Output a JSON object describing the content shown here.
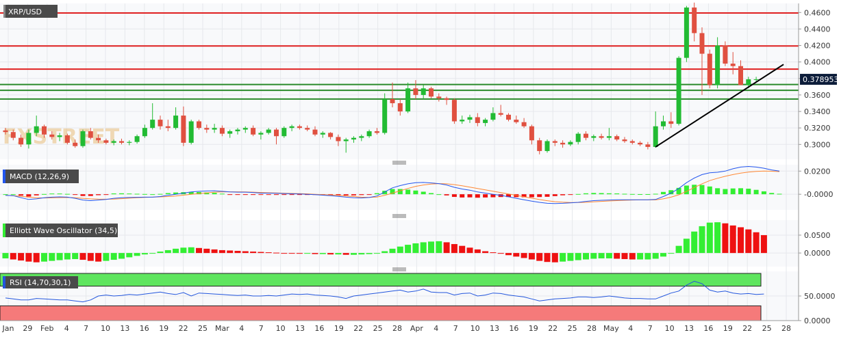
{
  "symbol": "XRP/USD",
  "watermark": "FXSTREET",
  "last_price": "0.378953",
  "colors": {
    "up": "#22bb33",
    "down": "#e05040",
    "resistance": "#e02020",
    "support": "#2a8a2a",
    "trendline": "#000000",
    "macd": "#2255ee",
    "signal": "#ff8833",
    "hist_up": "#33ee33",
    "hist_down": "#ee1111",
    "rsi_line": "#2255dd",
    "rsi_overbought": "#5ee55e",
    "rsi_oversold": "#f57a7a",
    "price_tag": "#0d1d3a",
    "label_bg": "#4a4a4a"
  },
  "chart_data": [
    {
      "type": "candlestick",
      "name": "XRP/USD",
      "y_ticks": [
        "0.3000",
        "0.3200",
        "0.3400",
        "0.3600",
        "0.3800",
        "0.4000",
        "0.4200",
        "0.4400",
        "0.4600"
      ],
      "ylim": [
        0.282,
        0.471
      ],
      "x_tick_labels": [
        "Jan",
        "29",
        "Feb",
        "4",
        "7",
        "10",
        "13",
        "16",
        "19",
        "22",
        "25",
        "Mar",
        "4",
        "7",
        "10",
        "13",
        "16",
        "19",
        "22",
        "25",
        "28",
        "Apr",
        "4",
        "7",
        "10",
        "13",
        "16",
        "19",
        "22",
        "25",
        "28",
        "May",
        "4",
        "7",
        "10",
        "13",
        "16",
        "19",
        "22",
        "25",
        "28"
      ],
      "ohlc": [
        [
          0.317,
          0.32,
          0.312,
          0.315
        ],
        [
          0.315,
          0.318,
          0.305,
          0.308
        ],
        [
          0.308,
          0.312,
          0.297,
          0.3
        ],
        [
          0.3,
          0.318,
          0.295,
          0.314
        ],
        [
          0.314,
          0.335,
          0.31,
          0.322
        ],
        [
          0.322,
          0.324,
          0.308,
          0.312
        ],
        [
          0.312,
          0.316,
          0.306,
          0.309
        ],
        [
          0.309,
          0.314,
          0.304,
          0.311
        ],
        [
          0.311,
          0.313,
          0.3,
          0.302
        ],
        [
          0.302,
          0.306,
          0.296,
          0.298
        ],
        [
          0.298,
          0.318,
          0.296,
          0.316
        ],
        [
          0.316,
          0.32,
          0.306,
          0.308
        ],
        [
          0.308,
          0.312,
          0.302,
          0.305
        ],
        [
          0.305,
          0.307,
          0.3,
          0.302
        ],
        [
          0.302,
          0.306,
          0.299,
          0.304
        ],
        [
          0.304,
          0.307,
          0.3,
          0.302
        ],
        [
          0.302,
          0.305,
          0.299,
          0.303
        ],
        [
          0.303,
          0.312,
          0.301,
          0.31
        ],
        [
          0.31,
          0.324,
          0.308,
          0.32
        ],
        [
          0.32,
          0.35,
          0.318,
          0.33
        ],
        [
          0.33,
          0.335,
          0.318,
          0.322
        ],
        [
          0.322,
          0.33,
          0.316,
          0.32
        ],
        [
          0.32,
          0.345,
          0.318,
          0.335
        ],
        [
          0.335,
          0.346,
          0.298,
          0.302
        ],
        [
          0.302,
          0.33,
          0.3,
          0.328
        ],
        [
          0.328,
          0.33,
          0.318,
          0.32
        ],
        [
          0.32,
          0.324,
          0.314,
          0.318
        ],
        [
          0.318,
          0.325,
          0.314,
          0.32
        ],
        [
          0.32,
          0.323,
          0.31,
          0.313
        ],
        [
          0.313,
          0.318,
          0.308,
          0.316
        ],
        [
          0.316,
          0.32,
          0.312,
          0.318
        ],
        [
          0.318,
          0.322,
          0.314,
          0.32
        ],
        [
          0.32,
          0.323,
          0.31,
          0.312
        ],
        [
          0.312,
          0.316,
          0.306,
          0.314
        ],
        [
          0.314,
          0.32,
          0.312,
          0.318
        ],
        [
          0.318,
          0.32,
          0.3,
          0.31
        ],
        [
          0.31,
          0.322,
          0.308,
          0.32
        ],
        [
          0.32,
          0.324,
          0.316,
          0.322
        ],
        [
          0.322,
          0.324,
          0.318,
          0.32
        ],
        [
          0.32,
          0.323,
          0.316,
          0.318
        ],
        [
          0.318,
          0.322,
          0.31,
          0.312
        ],
        [
          0.312,
          0.316,
          0.308,
          0.314
        ],
        [
          0.314,
          0.315,
          0.306,
          0.309
        ],
        [
          0.309,
          0.312,
          0.298,
          0.304
        ],
        [
          0.304,
          0.308,
          0.29,
          0.306
        ],
        [
          0.306,
          0.31,
          0.302,
          0.308
        ],
        [
          0.308,
          0.312,
          0.304,
          0.31
        ],
        [
          0.31,
          0.318,
          0.308,
          0.316
        ],
        [
          0.316,
          0.32,
          0.312,
          0.314
        ],
        [
          0.314,
          0.362,
          0.312,
          0.355
        ],
        [
          0.355,
          0.375,
          0.345,
          0.35
        ],
        [
          0.35,
          0.355,
          0.335,
          0.34
        ],
        [
          0.34,
          0.375,
          0.338,
          0.368
        ],
        [
          0.368,
          0.378,
          0.355,
          0.36
        ],
        [
          0.36,
          0.372,
          0.355,
          0.368
        ],
        [
          0.368,
          0.37,
          0.356,
          0.358
        ],
        [
          0.358,
          0.362,
          0.352,
          0.356
        ],
        [
          0.356,
          0.358,
          0.348,
          0.354
        ],
        [
          0.354,
          0.356,
          0.325,
          0.328
        ],
        [
          0.328,
          0.335,
          0.325,
          0.33
        ],
        [
          0.33,
          0.336,
          0.326,
          0.333
        ],
        [
          0.333,
          0.338,
          0.322,
          0.326
        ],
        [
          0.326,
          0.332,
          0.322,
          0.33
        ],
        [
          0.33,
          0.345,
          0.328,
          0.338
        ],
        [
          0.338,
          0.348,
          0.334,
          0.336
        ],
        [
          0.336,
          0.338,
          0.328,
          0.33
        ],
        [
          0.33,
          0.335,
          0.325,
          0.327
        ],
        [
          0.327,
          0.332,
          0.32,
          0.322
        ],
        [
          0.322,
          0.324,
          0.3,
          0.305
        ],
        [
          0.305,
          0.308,
          0.288,
          0.292
        ],
        [
          0.292,
          0.306,
          0.29,
          0.304
        ],
        [
          0.304,
          0.306,
          0.298,
          0.302
        ],
        [
          0.302,
          0.305,
          0.296,
          0.3
        ],
        [
          0.3,
          0.305,
          0.298,
          0.303
        ],
        [
          0.303,
          0.315,
          0.3,
          0.313
        ],
        [
          0.313,
          0.316,
          0.305,
          0.308
        ],
        [
          0.308,
          0.312,
          0.304,
          0.31
        ],
        [
          0.31,
          0.313,
          0.306,
          0.308
        ],
        [
          0.308,
          0.32,
          0.305,
          0.31
        ],
        [
          0.31,
          0.312,
          0.304,
          0.306
        ],
        [
          0.306,
          0.309,
          0.302,
          0.304
        ],
        [
          0.304,
          0.306,
          0.3,
          0.302
        ],
        [
          0.302,
          0.304,
          0.298,
          0.3
        ],
        [
          0.3,
          0.303,
          0.294,
          0.297
        ],
        [
          0.297,
          0.34,
          0.296,
          0.322
        ],
        [
          0.322,
          0.335,
          0.318,
          0.328
        ],
        [
          0.328,
          0.339,
          0.32,
          0.325
        ],
        [
          0.325,
          0.407,
          0.323,
          0.405
        ],
        [
          0.405,
          0.468,
          0.4,
          0.466
        ],
        [
          0.466,
          0.472,
          0.425,
          0.435
        ],
        [
          0.435,
          0.442,
          0.36,
          0.41
        ],
        [
          0.41,
          0.415,
          0.368,
          0.372
        ],
        [
          0.372,
          0.43,
          0.368,
          0.42
        ],
        [
          0.42,
          0.425,
          0.395,
          0.398
        ],
        [
          0.398,
          0.412,
          0.385,
          0.395
        ],
        [
          0.395,
          0.402,
          0.372,
          0.372
        ],
        [
          0.372,
          0.382,
          0.368,
          0.379
        ],
        [
          0.379,
          0.382,
          0.376,
          0.379
        ]
      ],
      "horizontal_levels": {
        "resistance": [
          0.4594,
          0.4194,
          0.3913
        ],
        "support": [
          0.3727,
          0.3656,
          0.3551
        ]
      },
      "trendline": {
        "from": [
          84,
          0.297
        ],
        "to": [
          97,
          0.397
        ]
      }
    },
    {
      "type": "line",
      "name": "MACD (12,26,9)",
      "y_ticks": [
        "0.0200",
        "-0.0000"
      ],
      "ylim": [
        -0.0135,
        0.0255
      ],
      "series_names": [
        "MACD",
        "Signal",
        "Histogram"
      ],
      "macd": [
        -0.001,
        -0.0012,
        -0.003,
        -0.0045,
        -0.004,
        -0.003,
        -0.0025,
        -0.0023,
        -0.0025,
        -0.0035,
        -0.005,
        -0.0055,
        -0.005,
        -0.0045,
        -0.0035,
        -0.003,
        -0.0028,
        -0.0026,
        -0.0025,
        -0.0025,
        -0.002,
        -0.001,
        0.0,
        0.001,
        0.002,
        0.0025,
        0.0028,
        0.003,
        0.0025,
        0.002,
        0.0018,
        0.0018,
        0.0015,
        0.001,
        0.001,
        0.0008,
        0.0006,
        0.0004,
        0.0002,
        0.0,
        -0.0004,
        -0.0008,
        -0.0012,
        -0.0018,
        -0.0025,
        -0.003,
        -0.0032,
        -0.0028,
        -0.0015,
        0.002,
        0.0055,
        0.0075,
        0.009,
        0.01,
        0.0102,
        0.0098,
        0.0092,
        0.008,
        0.006,
        0.0045,
        0.0035,
        0.002,
        0.001,
        0.0,
        -0.001,
        -0.0022,
        -0.0035,
        -0.0048,
        -0.006,
        -0.007,
        -0.0078,
        -0.008,
        -0.0078,
        -0.0075,
        -0.007,
        -0.0062,
        -0.0055,
        -0.0052,
        -0.005,
        -0.0048,
        -0.0048,
        -0.0048,
        -0.0048,
        -0.0048,
        -0.0045,
        -0.002,
        0.001,
        0.005,
        0.01,
        0.014,
        0.017,
        0.0185,
        0.019,
        0.02,
        0.022,
        0.0235,
        0.024,
        0.0235,
        0.0225,
        0.021,
        0.02
      ],
      "signal": [
        -0.001,
        -0.0012,
        -0.0018,
        -0.0025,
        -0.003,
        -0.0032,
        -0.0031,
        -0.0029,
        -0.0028,
        -0.003,
        -0.0035,
        -0.004,
        -0.0042,
        -0.0043,
        -0.0042,
        -0.0038,
        -0.0034,
        -0.003,
        -0.0027,
        -0.0025,
        -0.0023,
        -0.002,
        -0.0015,
        -0.0008,
        0.0,
        0.0006,
        0.0012,
        0.0018,
        0.002,
        0.0021,
        0.0021,
        0.002,
        0.0018,
        0.0015,
        0.0013,
        0.0011,
        0.0009,
        0.0007,
        0.0005,
        0.0003,
        0.0,
        -0.0003,
        -0.0006,
        -0.001,
        -0.0015,
        -0.002,
        -0.0025,
        -0.0027,
        -0.0024,
        -0.001,
        0.001,
        0.003,
        0.005,
        0.0068,
        0.008,
        0.0088,
        0.0092,
        0.009,
        0.0083,
        0.0073,
        0.0062,
        0.005,
        0.0038,
        0.0026,
        0.0014,
        0.0002,
        -0.001,
        -0.0022,
        -0.0034,
        -0.0046,
        -0.0056,
        -0.0064,
        -0.0069,
        -0.0072,
        -0.0072,
        -0.007,
        -0.0066,
        -0.0062,
        -0.0058,
        -0.0055,
        -0.0052,
        -0.005,
        -0.0049,
        -0.0049,
        -0.0049,
        -0.004,
        -0.0025,
        -0.0005,
        0.0025,
        0.0058,
        0.009,
        0.0118,
        0.0138,
        0.0155,
        0.017,
        0.0183,
        0.0192,
        0.0197,
        0.02,
        0.0199,
        0.0196
      ]
    },
    {
      "type": "bar",
      "name": "Elliott Wave Oscillator (34,5)",
      "y_ticks": [
        "0.0500",
        "0.0000"
      ],
      "ylim": [
        -0.038,
        0.092
      ],
      "values": [
        -0.015,
        -0.018,
        -0.021,
        -0.024,
        -0.026,
        -0.024,
        -0.022,
        -0.02,
        -0.018,
        -0.017,
        -0.019,
        -0.022,
        -0.024,
        -0.022,
        -0.019,
        -0.016,
        -0.012,
        -0.008,
        -0.004,
        0.0,
        0.004,
        0.008,
        0.012,
        0.015,
        0.016,
        0.014,
        0.012,
        0.01,
        0.008,
        0.007,
        0.006,
        0.005,
        0.004,
        0.003,
        0.002,
        0.001,
        0.0,
        -0.001,
        -0.002,
        -0.002,
        -0.003,
        -0.003,
        -0.004,
        -0.004,
        -0.005,
        -0.005,
        -0.004,
        -0.003,
        -0.001,
        0.005,
        0.012,
        0.018,
        0.023,
        0.027,
        0.03,
        0.032,
        0.033,
        0.03,
        0.025,
        0.02,
        0.015,
        0.01,
        0.005,
        0.002,
        -0.002,
        -0.006,
        -0.01,
        -0.014,
        -0.018,
        -0.022,
        -0.025,
        -0.026,
        -0.024,
        -0.022,
        -0.02,
        -0.018,
        -0.016,
        -0.015,
        -0.015,
        -0.016,
        -0.017,
        -0.018,
        -0.018,
        -0.018,
        -0.016,
        -0.01,
        0.0,
        0.02,
        0.04,
        0.06,
        0.075,
        0.085,
        0.086,
        0.083,
        0.077,
        0.072,
        0.066,
        0.058,
        0.05
      ]
    },
    {
      "type": "line",
      "name": "RSI (14,70,30,1)",
      "y_ticks": [
        "50.0000",
        "0.0000"
      ],
      "ylim": [
        0,
        100
      ],
      "levels": [
        70,
        30
      ],
      "values": [
        46,
        44,
        42,
        42,
        45,
        44,
        43,
        42,
        42,
        40,
        38,
        42,
        50,
        52,
        50,
        51,
        53,
        52,
        54,
        56,
        58,
        55,
        53,
        57,
        50,
        56,
        55,
        54,
        53,
        52,
        51,
        52,
        50,
        50,
        51,
        50,
        52,
        54,
        53,
        54,
        52,
        51,
        50,
        48,
        45,
        50,
        52,
        54,
        56,
        58,
        60,
        62,
        58,
        60,
        64,
        58,
        57,
        57,
        52,
        55,
        56,
        50,
        52,
        56,
        55,
        52,
        50,
        48,
        44,
        40,
        42,
        44,
        45,
        46,
        48,
        48,
        47,
        48,
        50,
        48,
        46,
        45,
        45,
        44,
        44,
        50,
        56,
        60,
        72,
        80,
        75,
        62,
        58,
        60,
        56,
        54,
        55,
        53,
        54
      ]
    }
  ]
}
